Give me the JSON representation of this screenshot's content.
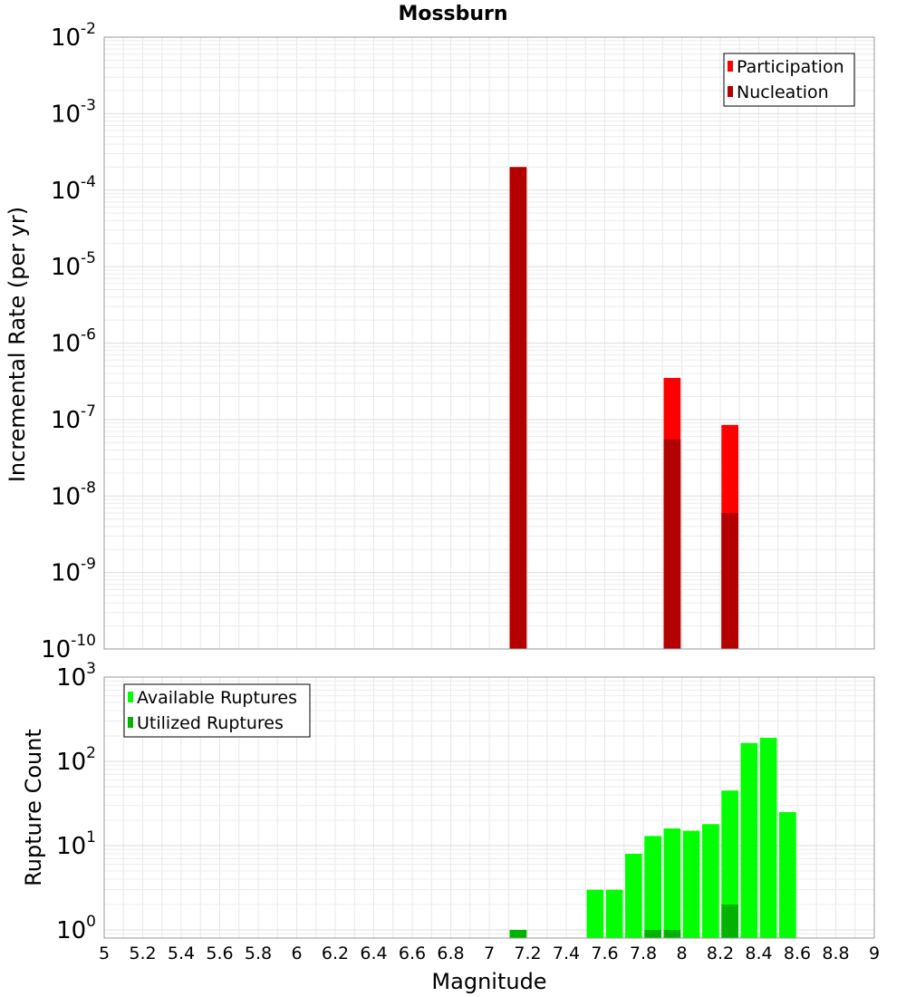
{
  "chart_data": [
    {
      "type": "bar",
      "title": "Mossburn",
      "xlabel": "",
      "ylabel": "Incremental Rate (per yr)",
      "yscale": "log",
      "ylim": [
        1e-10,
        0.01
      ],
      "xlim": [
        5,
        9
      ],
      "y_ticks": [
        {
          "base": "10",
          "exp": "-10",
          "value": 1e-10
        },
        {
          "base": "10",
          "exp": "-9",
          "value": 1e-09
        },
        {
          "base": "10",
          "exp": "-8",
          "value": 1e-08
        },
        {
          "base": "10",
          "exp": "-7",
          "value": 1e-07
        },
        {
          "base": "10",
          "exp": "-6",
          "value": 1e-06
        },
        {
          "base": "10",
          "exp": "-5",
          "value": 1e-05
        },
        {
          "base": "10",
          "exp": "-4",
          "value": 0.0001
        },
        {
          "base": "10",
          "exp": "-3",
          "value": 0.001
        },
        {
          "base": "10",
          "exp": "-2",
          "value": 0.01
        }
      ],
      "legend_position": "top-right",
      "grid": true,
      "series": [
        {
          "name": "Participation",
          "color": "#ff0000",
          "points": [
            {
              "x": 7.15,
              "y": 0.0002
            },
            {
              "x": 7.95,
              "y": 3.5e-07
            },
            {
              "x": 8.25,
              "y": 8.5e-08
            }
          ]
        },
        {
          "name": "Nucleation",
          "color": "#b30000",
          "points": [
            {
              "x": 7.15,
              "y": 0.0002
            },
            {
              "x": 7.95,
              "y": 5.5e-08
            },
            {
              "x": 8.25,
              "y": 6e-09
            }
          ]
        }
      ]
    },
    {
      "type": "bar",
      "title": "",
      "xlabel": "Magnitude",
      "ylabel": "Rupture Count",
      "yscale": "log",
      "ylim": [
        0.8,
        1000
      ],
      "xlim": [
        5,
        9
      ],
      "y_ticks": [
        {
          "base": "10",
          "exp": "0",
          "value": 1
        },
        {
          "base": "10",
          "exp": "1",
          "value": 10
        },
        {
          "base": "10",
          "exp": "2",
          "value": 100
        },
        {
          "base": "10",
          "exp": "3",
          "value": 1000
        }
      ],
      "x_ticks": [
        "5",
        "5.2",
        "5.4",
        "5.6",
        "5.8",
        "6",
        "6.2",
        "6.4",
        "6.6",
        "6.8",
        "7",
        "7.2",
        "7.4",
        "7.6",
        "7.8",
        "8",
        "8.2",
        "8.4",
        "8.6",
        "8.8",
        "9"
      ],
      "legend_position": "top-left",
      "grid": true,
      "series": [
        {
          "name": "Available Ruptures",
          "color": "#00ff00",
          "points": [
            {
              "x": 7.15,
              "y": 1
            },
            {
              "x": 7.55,
              "y": 3
            },
            {
              "x": 7.65,
              "y": 3
            },
            {
              "x": 7.75,
              "y": 8
            },
            {
              "x": 7.85,
              "y": 13
            },
            {
              "x": 7.95,
              "y": 16
            },
            {
              "x": 8.05,
              "y": 15
            },
            {
              "x": 8.15,
              "y": 18
            },
            {
              "x": 8.25,
              "y": 45
            },
            {
              "x": 8.35,
              "y": 165
            },
            {
              "x": 8.45,
              "y": 190
            },
            {
              "x": 8.55,
              "y": 25
            }
          ]
        },
        {
          "name": "Utilized Ruptures",
          "color": "#00b300",
          "points": [
            {
              "x": 7.15,
              "y": 1
            },
            {
              "x": 7.85,
              "y": 1
            },
            {
              "x": 7.95,
              "y": 1
            },
            {
              "x": 8.25,
              "y": 2
            }
          ]
        }
      ]
    }
  ]
}
